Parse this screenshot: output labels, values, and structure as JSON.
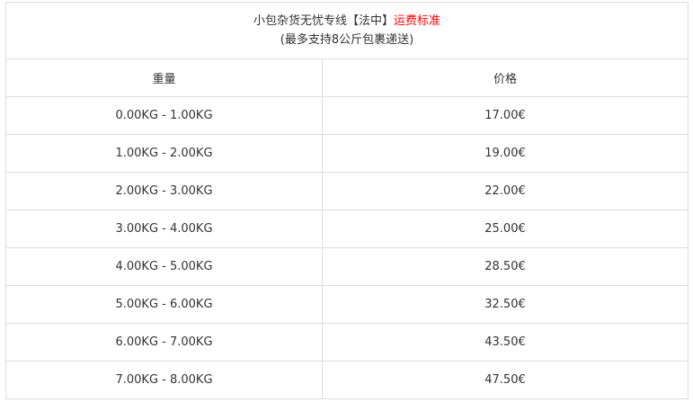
{
  "title": {
    "main": "小包杂货无忧专线【法中】",
    "highlight": "运费标准",
    "subtitle": "(最多支持8公斤包裹递送)"
  },
  "colors": {
    "highlight": "#ff0000",
    "border": "#dddddd"
  },
  "headers": [
    "重量",
    "价格"
  ],
  "rows": [
    {
      "weight": "0.00KG - 1.00KG",
      "price": "17.00€"
    },
    {
      "weight": "1.00KG - 2.00KG",
      "price": "19.00€"
    },
    {
      "weight": "2.00KG - 3.00KG",
      "price": "22.00€"
    },
    {
      "weight": "3.00KG - 4.00KG",
      "price": "25.00€"
    },
    {
      "weight": "4.00KG - 5.00KG",
      "price": "28.50€"
    },
    {
      "weight": "5.00KG - 6.00KG",
      "price": "32.50€"
    },
    {
      "weight": "6.00KG - 7.00KG",
      "price": "43.50€"
    },
    {
      "weight": "7.00KG - 8.00KG",
      "price": "47.50€"
    }
  ]
}
